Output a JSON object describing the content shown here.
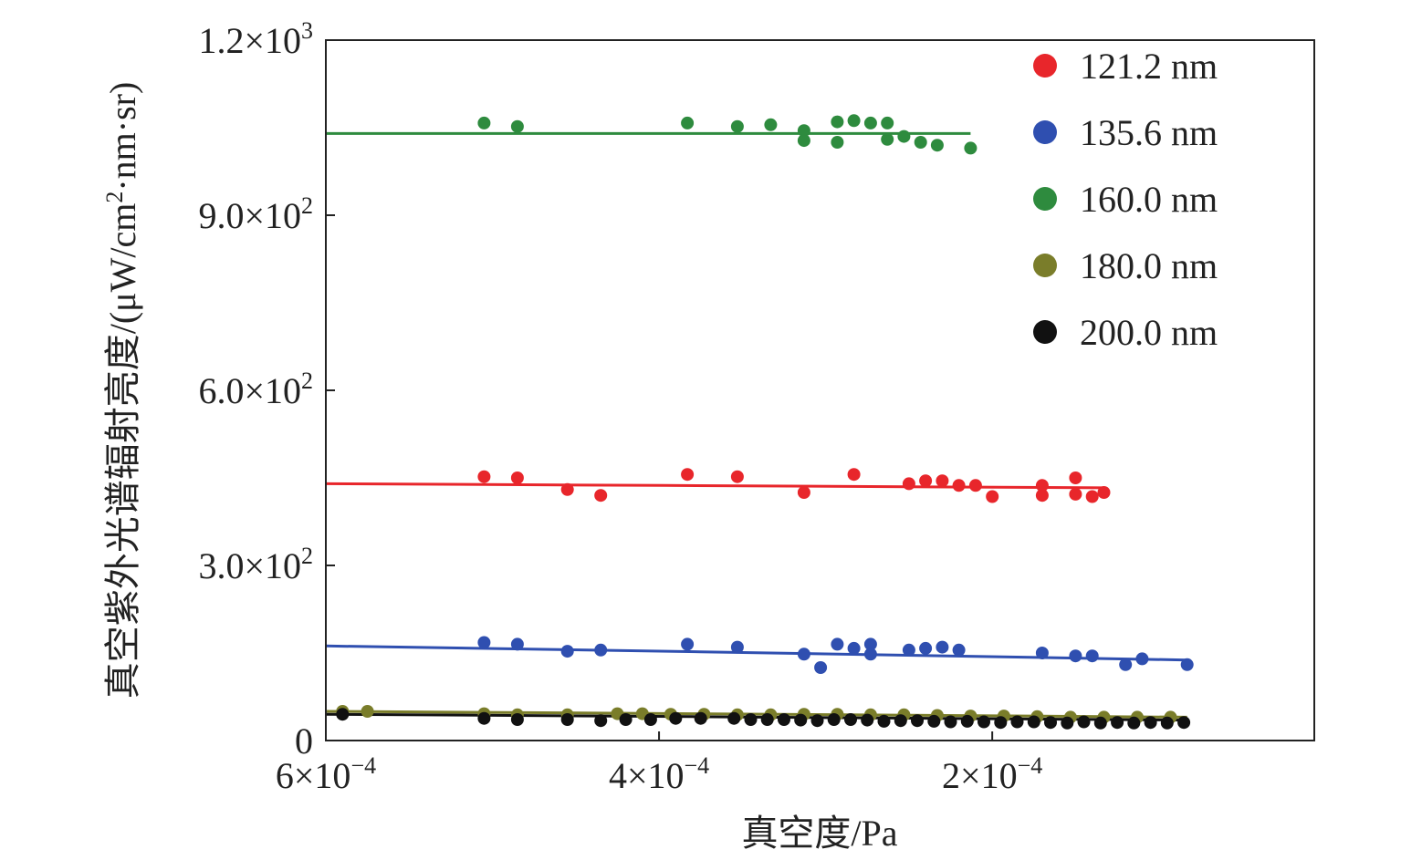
{
  "chart_data": {
    "type": "scatter",
    "title": "",
    "xlabel": "真空度/Pa",
    "ylabel": "真空紫外光谱辐射亮度/(μW/cm²·nm·sr)",
    "ylabel_parts": {
      "prefix": "真空紫外光谱辐射亮度/(μW/cm",
      "sup": "2",
      "suffix": "·nm·sr)"
    },
    "x_reversed": true,
    "xlim": [
      0.0006,
      6.7e-06
    ],
    "ylim": [
      0,
      1200
    ],
    "x_ticks": [
      {
        "value": 0.0006,
        "base": "6×10",
        "exp": "−4"
      },
      {
        "value": 0.0004,
        "base": "4×10",
        "exp": "−4"
      },
      {
        "value": 0.0002,
        "base": "2×10",
        "exp": "−4"
      }
    ],
    "y_ticks": [
      {
        "value": 0,
        "base": "0",
        "exp": ""
      },
      {
        "value": 300,
        "base": "3.0×10",
        "exp": "2"
      },
      {
        "value": 600,
        "base": "6.0×10",
        "exp": "2"
      },
      {
        "value": 900,
        "base": "9.0×10",
        "exp": "2"
      },
      {
        "value": 1200,
        "base": "1.2×10",
        "exp": "3"
      }
    ],
    "grid": false,
    "legend_position": "top-right",
    "series": [
      {
        "name": "121.2 nm",
        "color": "#e8262b",
        "fit": [
          [
            0.0006,
            440
          ],
          [
            0.000397,
            437
          ],
          [
            0.000133,
            433
          ]
        ],
        "points": [
          [
            0.000505,
            452
          ],
          [
            0.000485,
            450
          ],
          [
            0.000455,
            430
          ],
          [
            0.000435,
            420
          ],
          [
            0.000383,
            456
          ],
          [
            0.000353,
            452
          ],
          [
            0.000313,
            425
          ],
          [
            0.000283,
            456
          ],
          [
            0.00025,
            440
          ],
          [
            0.00024,
            445
          ],
          [
            0.00023,
            445
          ],
          [
            0.00022,
            437
          ],
          [
            0.00021,
            437
          ],
          [
            0.0002,
            418
          ],
          [
            0.00017,
            420
          ],
          [
            0.00017,
            437
          ],
          [
            0.00015,
            450
          ],
          [
            0.00015,
            422
          ],
          [
            0.00014,
            418
          ],
          [
            0.000133,
            425
          ]
        ]
      },
      {
        "name": "135.6 nm",
        "color": "#2f4fb0",
        "fit": [
          [
            0.0006,
            162
          ],
          [
            0.000375,
            152
          ],
          [
            8.3e-05,
            138
          ]
        ],
        "points": [
          [
            0.000505,
            168
          ],
          [
            0.000485,
            165
          ],
          [
            0.000455,
            153
          ],
          [
            0.000435,
            155
          ],
          [
            0.000383,
            165
          ],
          [
            0.000353,
            160
          ],
          [
            0.000313,
            148
          ],
          [
            0.000303,
            125
          ],
          [
            0.000293,
            165
          ],
          [
            0.000283,
            158
          ],
          [
            0.000273,
            165
          ],
          [
            0.000273,
            148
          ],
          [
            0.00025,
            155
          ],
          [
            0.00024,
            158
          ],
          [
            0.00023,
            160
          ],
          [
            0.00022,
            155
          ],
          [
            0.00017,
            150
          ],
          [
            0.00015,
            145
          ],
          [
            0.00014,
            145
          ],
          [
            0.00012,
            130
          ],
          [
            0.00011,
            140
          ],
          [
            8.3e-05,
            130
          ]
        ]
      },
      {
        "name": "160.0 nm",
        "color": "#2e8b3e",
        "fit": [
          [
            0.0006,
            1040
          ],
          [
            0.0004,
            1040
          ],
          [
            0.000213,
            1040
          ]
        ],
        "points": [
          [
            0.000505,
            1058
          ],
          [
            0.000485,
            1052
          ],
          [
            0.000383,
            1058
          ],
          [
            0.000353,
            1052
          ],
          [
            0.000333,
            1055
          ],
          [
            0.000313,
            1045
          ],
          [
            0.000313,
            1028
          ],
          [
            0.000293,
            1060
          ],
          [
            0.000293,
            1025
          ],
          [
            0.000283,
            1062
          ],
          [
            0.000273,
            1058
          ],
          [
            0.000263,
            1058
          ],
          [
            0.000263,
            1030
          ],
          [
            0.000253,
            1035
          ],
          [
            0.000243,
            1025
          ],
          [
            0.000233,
            1020
          ],
          [
            0.000213,
            1015
          ]
        ]
      },
      {
        "name": "180.0 nm",
        "color": "#7a7d2a",
        "fit": [
          [
            0.0006,
            50
          ],
          [
            0.00038,
            46
          ],
          [
            8.3e-05,
            40
          ]
        ],
        "points": [
          [
            0.00059,
            50
          ],
          [
            0.000575,
            50
          ],
          [
            0.000505,
            46
          ],
          [
            0.000485,
            44
          ],
          [
            0.000455,
            44
          ],
          [
            0.000425,
            46
          ],
          [
            0.00041,
            46
          ],
          [
            0.000393,
            45
          ],
          [
            0.000373,
            45
          ],
          [
            0.000353,
            44
          ],
          [
            0.000333,
            44
          ],
          [
            0.000313,
            45
          ],
          [
            0.000293,
            45
          ],
          [
            0.000273,
            44
          ],
          [
            0.000253,
            44
          ],
          [
            0.000233,
            43
          ],
          [
            0.000213,
            42
          ],
          [
            0.000193,
            42
          ],
          [
            0.000173,
            41
          ],
          [
            0.000153,
            40
          ],
          [
            0.000133,
            40
          ],
          [
            0.000113,
            40
          ],
          [
            9.3e-05,
            40
          ]
        ]
      },
      {
        "name": "200.0 nm",
        "color": "#111111",
        "fit": [
          [
            0.0006,
            45
          ],
          [
            0.00038,
            41
          ],
          [
            8.3e-05,
            35
          ]
        ],
        "points": [
          [
            0.00059,
            45
          ],
          [
            0.000505,
            38
          ],
          [
            0.000485,
            36
          ],
          [
            0.000455,
            36
          ],
          [
            0.000435,
            34
          ],
          [
            0.00042,
            36
          ],
          [
            0.000405,
            36
          ],
          [
            0.00039,
            38
          ],
          [
            0.000375,
            38
          ],
          [
            0.000355,
            38
          ],
          [
            0.000345,
            36
          ],
          [
            0.000335,
            36
          ],
          [
            0.000325,
            36
          ],
          [
            0.000315,
            35
          ],
          [
            0.000305,
            34
          ],
          [
            0.000295,
            36
          ],
          [
            0.000285,
            36
          ],
          [
            0.000275,
            35
          ],
          [
            0.000265,
            33
          ],
          [
            0.000255,
            34
          ],
          [
            0.000245,
            34
          ],
          [
            0.000235,
            33
          ],
          [
            0.000225,
            32
          ],
          [
            0.000215,
            33
          ],
          [
            0.000205,
            32
          ],
          [
            0.000195,
            31
          ],
          [
            0.000185,
            32
          ],
          [
            0.000175,
            32
          ],
          [
            0.000165,
            31
          ],
          [
            0.000155,
            30
          ],
          [
            0.000145,
            32
          ],
          [
            0.000135,
            30
          ],
          [
            0.000125,
            31
          ],
          [
            0.000115,
            30
          ],
          [
            0.000105,
            31
          ],
          [
            9.5e-05,
            30
          ],
          [
            8.5e-05,
            31
          ]
        ]
      }
    ]
  }
}
